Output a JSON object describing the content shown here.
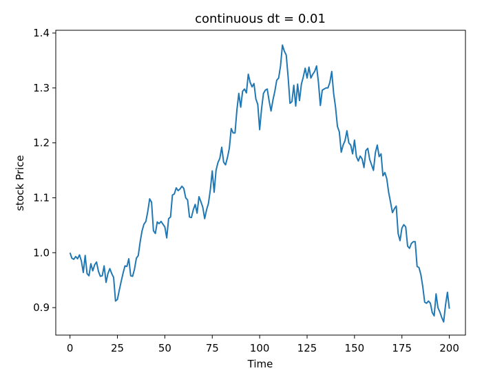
{
  "chart_data": {
    "type": "line",
    "title": "continuous dt = 0.01",
    "xlabel": "Time",
    "ylabel": "stock Price",
    "xlim": [
      -7.5,
      208.5
    ],
    "ylim": [
      0.85,
      1.405
    ],
    "xticks": [
      0,
      25,
      50,
      75,
      100,
      125,
      150,
      175,
      200
    ],
    "xtick_labels": [
      "0",
      "25",
      "50",
      "75",
      "100",
      "125",
      "150",
      "175",
      "200"
    ],
    "yticks": [
      0.9,
      1.0,
      1.1,
      1.2,
      1.3,
      1.4
    ],
    "ytick_labels": [
      "0.9",
      "1.0",
      "1.1",
      "1.2",
      "1.3",
      "1.4"
    ],
    "grid": false,
    "line_color": "#1f77b4",
    "series": [
      {
        "x": [
          0,
          1,
          2,
          3,
          4,
          5,
          6,
          7,
          8,
          9,
          10,
          11,
          12,
          13,
          14,
          15,
          16,
          17,
          18,
          19,
          20,
          21,
          22,
          23,
          24,
          25,
          26,
          27,
          28,
          29,
          30,
          31,
          32,
          33,
          34,
          35,
          36,
          37,
          38,
          39,
          40,
          41,
          42,
          43,
          44,
          45,
          46,
          47,
          48,
          49,
          50,
          51,
          52,
          53,
          54,
          55,
          56,
          57,
          58,
          59,
          60,
          61,
          62,
          63,
          64,
          65,
          66,
          67,
          68,
          69,
          70,
          71,
          72,
          73,
          74,
          75,
          76,
          77,
          78,
          79,
          80,
          81,
          82,
          83,
          84,
          85,
          86,
          87,
          88,
          89,
          90,
          91,
          92,
          93,
          94,
          95,
          96,
          97,
          98,
          99,
          100,
          101,
          102,
          103,
          104,
          105,
          106,
          107,
          108,
          109,
          110,
          111,
          112,
          113,
          114,
          115,
          116,
          117,
          118,
          119,
          120,
          121,
          122,
          123,
          124,
          125,
          126,
          127,
          128,
          129,
          130,
          131,
          132,
          133,
          134,
          135,
          136,
          137,
          138,
          139,
          140,
          141,
          142,
          143,
          144,
          145,
          146,
          147,
          148,
          149,
          150,
          151,
          152,
          153,
          154,
          155,
          156,
          157,
          158,
          159,
          160,
          161,
          162,
          163,
          164,
          165,
          166,
          167,
          168,
          169,
          170,
          171,
          172,
          173,
          174,
          175,
          176,
          177,
          178,
          179,
          180,
          181,
          182,
          183,
          184,
          185,
          186,
          187,
          188,
          189,
          190,
          191,
          192,
          193,
          194,
          195,
          196,
          197,
          198,
          199,
          200
        ],
        "y": [
          1.0,
          0.99,
          0.988,
          0.993,
          0.989,
          0.996,
          0.985,
          0.964,
          0.995,
          0.962,
          0.958,
          0.98,
          0.967,
          0.978,
          0.983,
          0.966,
          0.957,
          0.958,
          0.976,
          0.946,
          0.962,
          0.971,
          0.962,
          0.955,
          0.912,
          0.915,
          0.932,
          0.948,
          0.963,
          0.976,
          0.975,
          0.989,
          0.958,
          0.957,
          0.97,
          0.99,
          0.995,
          1.02,
          1.04,
          1.052,
          1.057,
          1.075,
          1.098,
          1.092,
          1.04,
          1.035,
          1.056,
          1.053,
          1.057,
          1.052,
          1.047,
          1.027,
          1.062,
          1.065,
          1.105,
          1.107,
          1.118,
          1.113,
          1.116,
          1.121,
          1.117,
          1.1,
          1.096,
          1.065,
          1.064,
          1.078,
          1.088,
          1.072,
          1.102,
          1.093,
          1.083,
          1.062,
          1.078,
          1.09,
          1.115,
          1.149,
          1.11,
          1.15,
          1.164,
          1.172,
          1.192,
          1.165,
          1.16,
          1.173,
          1.19,
          1.226,
          1.218,
          1.218,
          1.26,
          1.29,
          1.265,
          1.294,
          1.298,
          1.291,
          1.325,
          1.31,
          1.302,
          1.308,
          1.28,
          1.27,
          1.224,
          1.262,
          1.29,
          1.296,
          1.298,
          1.276,
          1.258,
          1.278,
          1.294,
          1.314,
          1.318,
          1.34,
          1.378,
          1.367,
          1.36,
          1.32,
          1.272,
          1.275,
          1.305,
          1.267,
          1.307,
          1.277,
          1.307,
          1.32,
          1.336,
          1.318,
          1.338,
          1.318,
          1.325,
          1.33,
          1.34,
          1.31,
          1.268,
          1.296,
          1.298,
          1.3,
          1.3,
          1.31,
          1.33,
          1.29,
          1.265,
          1.23,
          1.22,
          1.183,
          1.196,
          1.204,
          1.222,
          1.2,
          1.196,
          1.18,
          1.205,
          1.175,
          1.167,
          1.176,
          1.171,
          1.155,
          1.186,
          1.19,
          1.17,
          1.16,
          1.15,
          1.182,
          1.196,
          1.175,
          1.18,
          1.14,
          1.146,
          1.135,
          1.11,
          1.092,
          1.073,
          1.08,
          1.085,
          1.035,
          1.022,
          1.045,
          1.051,
          1.047,
          1.012,
          1.008,
          1.017,
          1.02,
          1.02,
          0.975,
          0.973,
          0.96,
          0.938,
          0.91,
          0.908,
          0.912,
          0.908,
          0.891,
          0.885,
          0.925,
          0.9,
          0.892,
          0.882,
          0.874,
          0.905,
          0.928,
          0.898
        ]
      }
    ]
  }
}
